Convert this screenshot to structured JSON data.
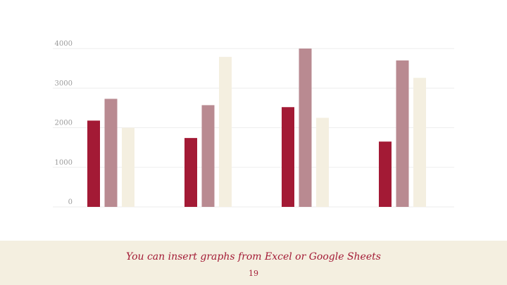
{
  "slide": {
    "caption": "You can insert graphs from Excel or Google Sheets",
    "page_number": "19"
  },
  "colors": {
    "series1": "#a31a35",
    "series2": "#b98a91",
    "series3": "#f4efe0",
    "gridline": "#eeeeee",
    "tick_label": "#9a9a9a",
    "footer_bg": "#f4efe0",
    "footer_text": "#a31a35"
  },
  "chart_data": {
    "type": "bar",
    "title": "",
    "xlabel": "",
    "ylabel": "",
    "categories": [
      "",
      "",
      "",
      ""
    ],
    "series": [
      {
        "values": [
          2180,
          1740,
          2520,
          1650
        ]
      },
      {
        "values": [
          2730,
          2570,
          4000,
          3700
        ]
      },
      {
        "values": [
          2000,
          3790,
          2250,
          3260
        ]
      }
    ],
    "ylim": [
      0,
      4000
    ],
    "yticks": [
      "0",
      "1000",
      "2000",
      "3000",
      "4000"
    ],
    "grid": true,
    "legend": "none"
  }
}
